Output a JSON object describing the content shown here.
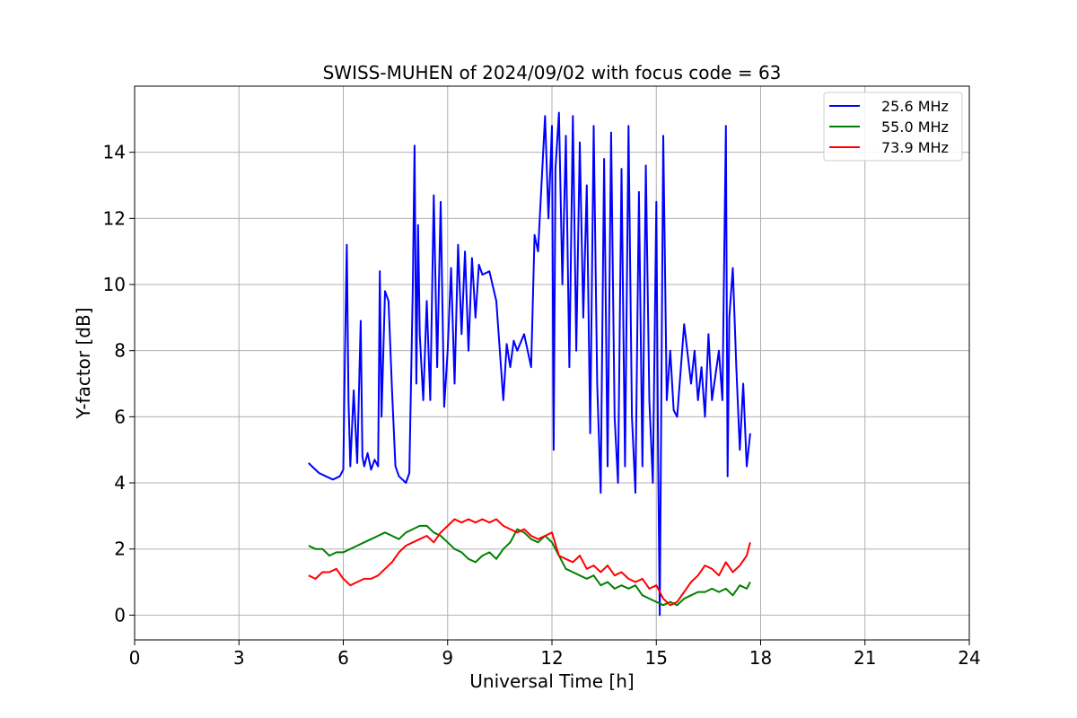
{
  "chart_data": {
    "type": "line",
    "title": "SWISS-MUHEN of 2024/09/02 with focus code = 63",
    "xlabel": "Universal Time [h]",
    "ylabel": "Y-factor [dB]",
    "xlim": [
      0,
      24
    ],
    "ylim": [
      -0.75,
      16
    ],
    "x_ticks": [
      0,
      3,
      6,
      9,
      12,
      15,
      18,
      21,
      24
    ],
    "x_tick_labels": [
      "0",
      "3",
      "6",
      "9",
      "12",
      "15",
      "18",
      "21",
      "24"
    ],
    "y_ticks": [
      0,
      2,
      4,
      6,
      8,
      10,
      12,
      14
    ],
    "y_tick_labels": [
      "0",
      "2",
      "4",
      "6",
      "8",
      "10",
      "12",
      "14"
    ],
    "grid": true,
    "legend_position": "top-right",
    "series": [
      {
        "name": "25.6 MHz",
        "color": "#0000ff",
        "x": [
          5.0,
          5.1,
          5.3,
          5.5,
          5.7,
          5.9,
          6.0,
          6.05,
          6.1,
          6.15,
          6.2,
          6.3,
          6.4,
          6.5,
          6.55,
          6.6,
          6.7,
          6.8,
          6.9,
          7.0,
          7.05,
          7.1,
          7.2,
          7.3,
          7.4,
          7.5,
          7.6,
          7.7,
          7.8,
          7.9,
          8.0,
          8.05,
          8.1,
          8.15,
          8.2,
          8.3,
          8.4,
          8.5,
          8.6,
          8.7,
          8.8,
          8.9,
          9.0,
          9.1,
          9.2,
          9.3,
          9.4,
          9.5,
          9.6,
          9.7,
          9.8,
          9.9,
          10.0,
          10.2,
          10.4,
          10.6,
          10.7,
          10.8,
          10.9,
          11.0,
          11.2,
          11.4,
          11.5,
          11.6,
          11.8,
          11.9,
          12.0,
          12.05,
          12.1,
          12.2,
          12.3,
          12.4,
          12.5,
          12.6,
          12.7,
          12.8,
          12.9,
          13.0,
          13.1,
          13.2,
          13.3,
          13.4,
          13.5,
          13.6,
          13.7,
          13.8,
          13.9,
          14.0,
          14.1,
          14.2,
          14.3,
          14.4,
          14.5,
          14.6,
          14.7,
          14.8,
          14.9,
          15.0,
          15.05,
          15.1,
          15.2,
          15.3,
          15.4,
          15.5,
          15.6,
          15.8,
          16.0,
          16.1,
          16.2,
          16.3,
          16.4,
          16.5,
          16.6,
          16.8,
          16.9,
          17.0,
          17.05,
          17.1,
          17.2,
          17.3,
          17.4,
          17.5,
          17.6,
          17.7
        ],
        "y": [
          4.6,
          4.5,
          4.3,
          4.2,
          4.1,
          4.2,
          4.4,
          8.0,
          11.2,
          6.5,
          4.5,
          6.8,
          4.6,
          8.9,
          4.8,
          4.5,
          4.9,
          4.4,
          4.7,
          4.5,
          10.4,
          6.0,
          9.8,
          9.5,
          6.8,
          4.5,
          4.2,
          4.1,
          4.0,
          4.3,
          10.0,
          14.2,
          7.0,
          11.8,
          8.5,
          6.5,
          9.5,
          6.5,
          12.7,
          7.5,
          12.5,
          6.3,
          8.0,
          10.5,
          7.0,
          11.2,
          8.5,
          11.0,
          8.0,
          10.8,
          9.0,
          10.6,
          10.3,
          10.4,
          9.5,
          6.5,
          8.2,
          7.5,
          8.3,
          8.0,
          8.5,
          7.5,
          11.5,
          11.0,
          15.1,
          12.0,
          14.8,
          5.0,
          13.5,
          15.2,
          10.0,
          14.5,
          7.5,
          15.1,
          8.0,
          14.3,
          9.0,
          13.0,
          5.5,
          14.8,
          7.0,
          3.7,
          13.8,
          4.5,
          14.6,
          6.0,
          4.0,
          13.5,
          4.5,
          14.8,
          6.0,
          3.7,
          12.8,
          4.5,
          13.6,
          6.5,
          4.0,
          12.5,
          5.0,
          0.0,
          14.5,
          6.5,
          8.0,
          6.2,
          6.0,
          8.8,
          7.0,
          8.0,
          6.5,
          7.5,
          6.0,
          8.5,
          6.5,
          8.0,
          6.5,
          14.8,
          4.2,
          9.0,
          10.5,
          7.5,
          5.0,
          7.0,
          4.5,
          5.5
        ]
      },
      {
        "name": "55.0 MHz",
        "color": "#008000",
        "x": [
          5.0,
          5.2,
          5.4,
          5.6,
          5.8,
          6.0,
          6.2,
          6.4,
          6.6,
          6.8,
          7.0,
          7.2,
          7.4,
          7.6,
          7.8,
          8.0,
          8.2,
          8.4,
          8.6,
          8.8,
          9.0,
          9.2,
          9.4,
          9.6,
          9.8,
          10.0,
          10.2,
          10.4,
          10.6,
          10.8,
          11.0,
          11.2,
          11.4,
          11.6,
          11.8,
          12.0,
          12.2,
          12.4,
          12.6,
          12.8,
          13.0,
          13.2,
          13.4,
          13.6,
          13.8,
          14.0,
          14.2,
          14.4,
          14.6,
          14.8,
          15.0,
          15.2,
          15.4,
          15.6,
          15.8,
          16.0,
          16.2,
          16.4,
          16.6,
          16.8,
          17.0,
          17.2,
          17.4,
          17.6,
          17.7
        ],
        "y": [
          2.1,
          2.0,
          2.0,
          1.8,
          1.9,
          1.9,
          2.0,
          2.1,
          2.2,
          2.3,
          2.4,
          2.5,
          2.4,
          2.3,
          2.5,
          2.6,
          2.7,
          2.7,
          2.5,
          2.4,
          2.2,
          2.0,
          1.9,
          1.7,
          1.6,
          1.8,
          1.9,
          1.7,
          2.0,
          2.2,
          2.6,
          2.5,
          2.3,
          2.2,
          2.4,
          2.2,
          1.8,
          1.4,
          1.3,
          1.2,
          1.1,
          1.2,
          0.9,
          1.0,
          0.8,
          0.9,
          0.8,
          0.9,
          0.6,
          0.5,
          0.4,
          0.3,
          0.4,
          0.3,
          0.5,
          0.6,
          0.7,
          0.7,
          0.8,
          0.7,
          0.8,
          0.6,
          0.9,
          0.8,
          1.0
        ]
      },
      {
        "name": "73.9 MHz",
        "color": "#ff0000",
        "x": [
          5.0,
          5.2,
          5.4,
          5.6,
          5.8,
          6.0,
          6.2,
          6.4,
          6.6,
          6.8,
          7.0,
          7.2,
          7.4,
          7.6,
          7.8,
          8.0,
          8.2,
          8.4,
          8.6,
          8.8,
          9.0,
          9.2,
          9.4,
          9.6,
          9.8,
          10.0,
          10.2,
          10.4,
          10.6,
          10.8,
          11.0,
          11.2,
          11.4,
          11.6,
          11.8,
          12.0,
          12.2,
          12.4,
          12.6,
          12.8,
          13.0,
          13.2,
          13.4,
          13.6,
          13.8,
          14.0,
          14.2,
          14.4,
          14.6,
          14.8,
          15.0,
          15.2,
          15.4,
          15.6,
          15.8,
          16.0,
          16.2,
          16.4,
          16.6,
          16.8,
          17.0,
          17.2,
          17.4,
          17.6,
          17.7
        ],
        "y": [
          1.2,
          1.1,
          1.3,
          1.3,
          1.4,
          1.1,
          0.9,
          1.0,
          1.1,
          1.1,
          1.2,
          1.4,
          1.6,
          1.9,
          2.1,
          2.2,
          2.3,
          2.4,
          2.2,
          2.5,
          2.7,
          2.9,
          2.8,
          2.9,
          2.8,
          2.9,
          2.8,
          2.9,
          2.7,
          2.6,
          2.5,
          2.6,
          2.4,
          2.3,
          2.4,
          2.5,
          1.8,
          1.7,
          1.6,
          1.8,
          1.4,
          1.5,
          1.3,
          1.5,
          1.2,
          1.3,
          1.1,
          1.0,
          1.1,
          0.8,
          0.9,
          0.5,
          0.3,
          0.4,
          0.7,
          1.0,
          1.2,
          1.5,
          1.4,
          1.2,
          1.6,
          1.3,
          1.5,
          1.8,
          2.2
        ]
      }
    ]
  }
}
